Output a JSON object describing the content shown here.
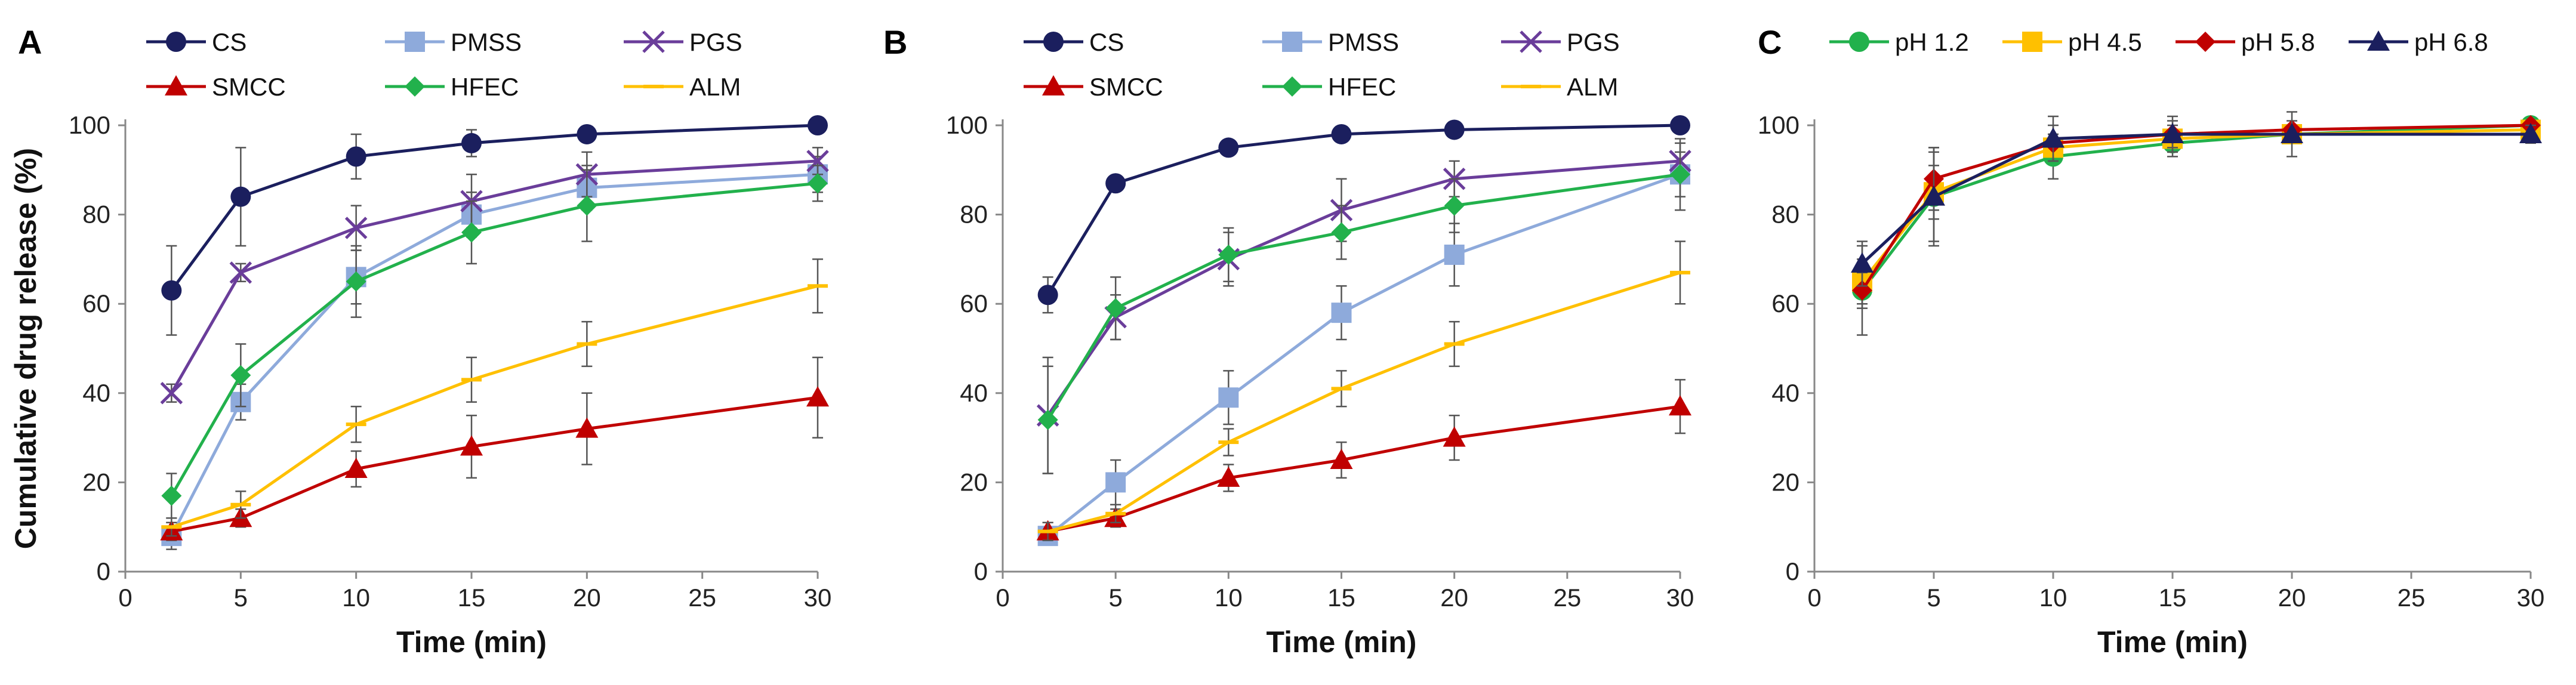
{
  "colors": {
    "CS": "#1b1f5e",
    "PMSS": "#8eaadb",
    "PGS": "#6a3d9a",
    "SMCC": "#c00000",
    "HFEC": "#22b14c",
    "ALM": "#ffc000",
    "pH 1.2": "#22b14c",
    "pH 4.5": "#ffc000",
    "pH 5.8": "#c00000",
    "pH 6.8": "#1b1f5e"
  },
  "chart_data": [
    {
      "type": "line",
      "panel": "A",
      "xlabel": "Time (min)",
      "ylabel": "Cumulative drug release (%)",
      "xlim": [
        0,
        30
      ],
      "ylim": [
        0,
        100
      ],
      "xticks": [
        0,
        5,
        10,
        15,
        20,
        25,
        30
      ],
      "yticks": [
        0,
        20,
        40,
        60,
        80,
        100
      ],
      "legend_position": "top",
      "x": [
        2,
        5,
        10,
        15,
        20,
        30
      ],
      "series": [
        {
          "name": "CS",
          "marker": "circle",
          "values": [
            63,
            84,
            93,
            96,
            98,
            100
          ],
          "errors": [
            10,
            11,
            5,
            3,
            1,
            1
          ]
        },
        {
          "name": "PMSS",
          "marker": "square",
          "values": [
            8,
            38,
            66,
            80,
            86,
            89
          ],
          "errors": [
            3,
            4,
            6,
            5,
            5,
            4
          ]
        },
        {
          "name": "PGS",
          "marker": "x",
          "values": [
            40,
            67,
            77,
            83,
            89,
            92
          ],
          "errors": [
            2,
            2,
            5,
            6,
            5,
            3
          ]
        },
        {
          "name": "SMCC",
          "marker": "triangle",
          "values": [
            9,
            12,
            23,
            28,
            32,
            39
          ],
          "errors": [
            2,
            2,
            4,
            7,
            8,
            9
          ]
        },
        {
          "name": "HFEC",
          "marker": "diamond",
          "values": [
            17,
            44,
            65,
            76,
            82,
            87
          ],
          "errors": [
            5,
            7,
            8,
            7,
            8,
            4
          ]
        },
        {
          "name": "ALM",
          "marker": "dash",
          "values": [
            10,
            15,
            33,
            43,
            51,
            64
          ],
          "errors": [
            2,
            3,
            4,
            5,
            5,
            6
          ]
        }
      ]
    },
    {
      "type": "line",
      "panel": "B",
      "xlabel": "Time (min)",
      "ylabel": "",
      "xlim": [
        0,
        30
      ],
      "ylim": [
        0,
        100
      ],
      "xticks": [
        0,
        5,
        10,
        15,
        20,
        25,
        30
      ],
      "yticks": [
        0,
        20,
        40,
        60,
        80,
        100
      ],
      "legend_position": "top",
      "x": [
        2,
        5,
        10,
        15,
        20,
        30
      ],
      "series": [
        {
          "name": "CS",
          "marker": "circle",
          "values": [
            62,
            87,
            95,
            98,
            99,
            100
          ],
          "errors": [
            4,
            1,
            1,
            1,
            1,
            1
          ]
        },
        {
          "name": "PMSS",
          "marker": "square",
          "values": [
            8,
            20,
            39,
            58,
            71,
            89
          ],
          "errors": [
            2,
            5,
            6,
            6,
            7,
            5
          ]
        },
        {
          "name": "PGS",
          "marker": "x",
          "values": [
            35,
            57,
            70,
            81,
            88,
            92
          ],
          "errors": [
            13,
            5,
            6,
            7,
            4,
            4
          ]
        },
        {
          "name": "SMCC",
          "marker": "triangle",
          "values": [
            9,
            12,
            21,
            25,
            30,
            37
          ],
          "errors": [
            2,
            2,
            3,
            4,
            5,
            6
          ]
        },
        {
          "name": "HFEC",
          "marker": "diamond",
          "values": [
            34,
            59,
            71,
            76,
            82,
            89
          ],
          "errors": [
            12,
            7,
            6,
            6,
            6,
            8
          ]
        },
        {
          "name": "ALM",
          "marker": "dash",
          "values": [
            9,
            13,
            29,
            41,
            51,
            67
          ],
          "errors": [
            2,
            2,
            3,
            4,
            5,
            7
          ]
        }
      ]
    },
    {
      "type": "line",
      "panel": "C",
      "xlabel": "Time (min)",
      "ylabel": "",
      "xlim": [
        0,
        30
      ],
      "ylim": [
        0,
        100
      ],
      "xticks": [
        0,
        5,
        10,
        15,
        20,
        25,
        30
      ],
      "yticks": [
        0,
        20,
        40,
        60,
        80,
        100
      ],
      "legend_position": "top",
      "x": [
        2,
        5,
        10,
        15,
        20,
        30
      ],
      "series": [
        {
          "name": "pH 1.2",
          "marker": "circle",
          "values": [
            63,
            84,
            93,
            96,
            98,
            100
          ],
          "errors": [
            10,
            11,
            5,
            3,
            1,
            1
          ]
        },
        {
          "name": "pH 4.5",
          "marker": "square",
          "values": [
            65,
            85,
            95,
            97,
            98,
            99
          ],
          "errors": [
            5,
            6,
            3,
            3,
            2,
            1
          ]
        },
        {
          "name": "pH 5.8",
          "marker": "diamond",
          "values": [
            63,
            88,
            96,
            98,
            99,
            100
          ],
          "errors": [
            4,
            7,
            4,
            3,
            2,
            1
          ]
        },
        {
          "name": "pH 6.8",
          "marker": "triangle",
          "values": [
            69,
            84,
            97,
            98,
            98,
            98
          ],
          "errors": [
            5,
            10,
            5,
            4,
            5,
            2
          ]
        }
      ]
    }
  ]
}
